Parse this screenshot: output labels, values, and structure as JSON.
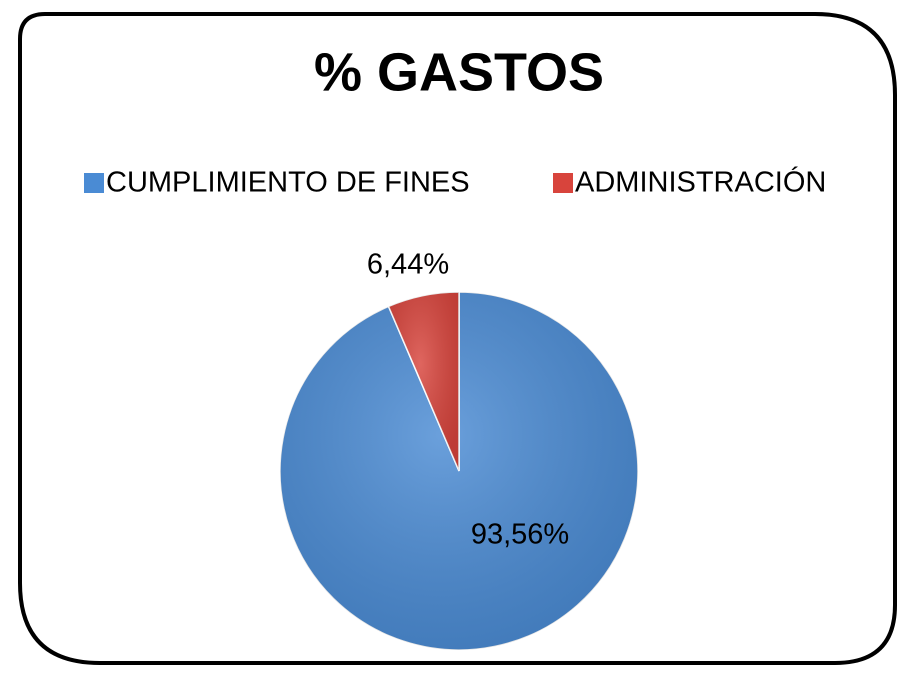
{
  "chart_data": {
    "type": "pie",
    "title": "% GASTOS",
    "categories": [
      "CUMPLIMIENTO DE FINES",
      "ADMINISTRACIÓN"
    ],
    "values": [
      93.56,
      6.44
    ],
    "value_labels": [
      "93,56%",
      "6,44%"
    ],
    "colors": [
      "#4a8bd4",
      "#d8443c"
    ],
    "legend": "top"
  }
}
